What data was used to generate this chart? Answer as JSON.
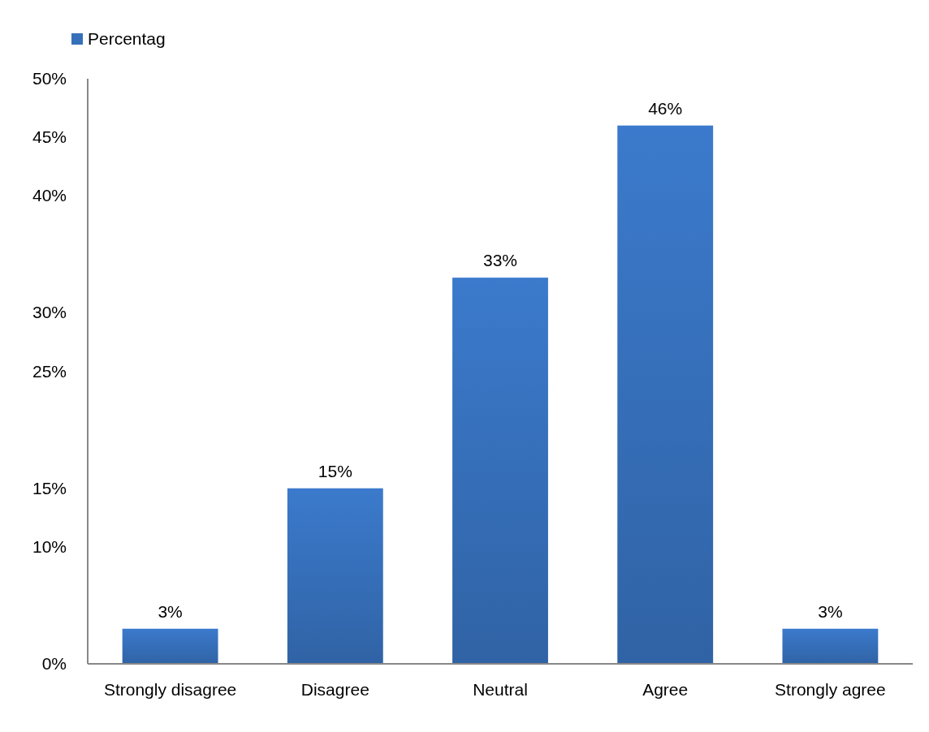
{
  "chart_data": {
    "type": "bar",
    "categories": [
      "Strongly disagree",
      "Disagree",
      "Neutral",
      "Agree",
      "Strongly agree"
    ],
    "series": [
      {
        "name": "Percentag",
        "color": "#3670bb",
        "values": [
          3,
          15,
          33,
          46,
          3
        ],
        "value_labels": [
          "3%",
          "15%",
          "33%",
          "46%",
          "3%"
        ]
      }
    ],
    "ylim": [
      0,
      50
    ],
    "yticks": [
      {
        "value": 0,
        "label": "0%"
      },
      {
        "value": 10,
        "label": "10%"
      },
      {
        "value": 15,
        "label": "15%"
      },
      {
        "value": 25,
        "label": "25%"
      },
      {
        "value": 30,
        "label": "30%"
      },
      {
        "value": 40,
        "label": "40%"
      },
      {
        "value": 45,
        "label": "45%"
      },
      {
        "value": 50,
        "label": "50%"
      }
    ],
    "legend": "top left",
    "grid": false
  }
}
